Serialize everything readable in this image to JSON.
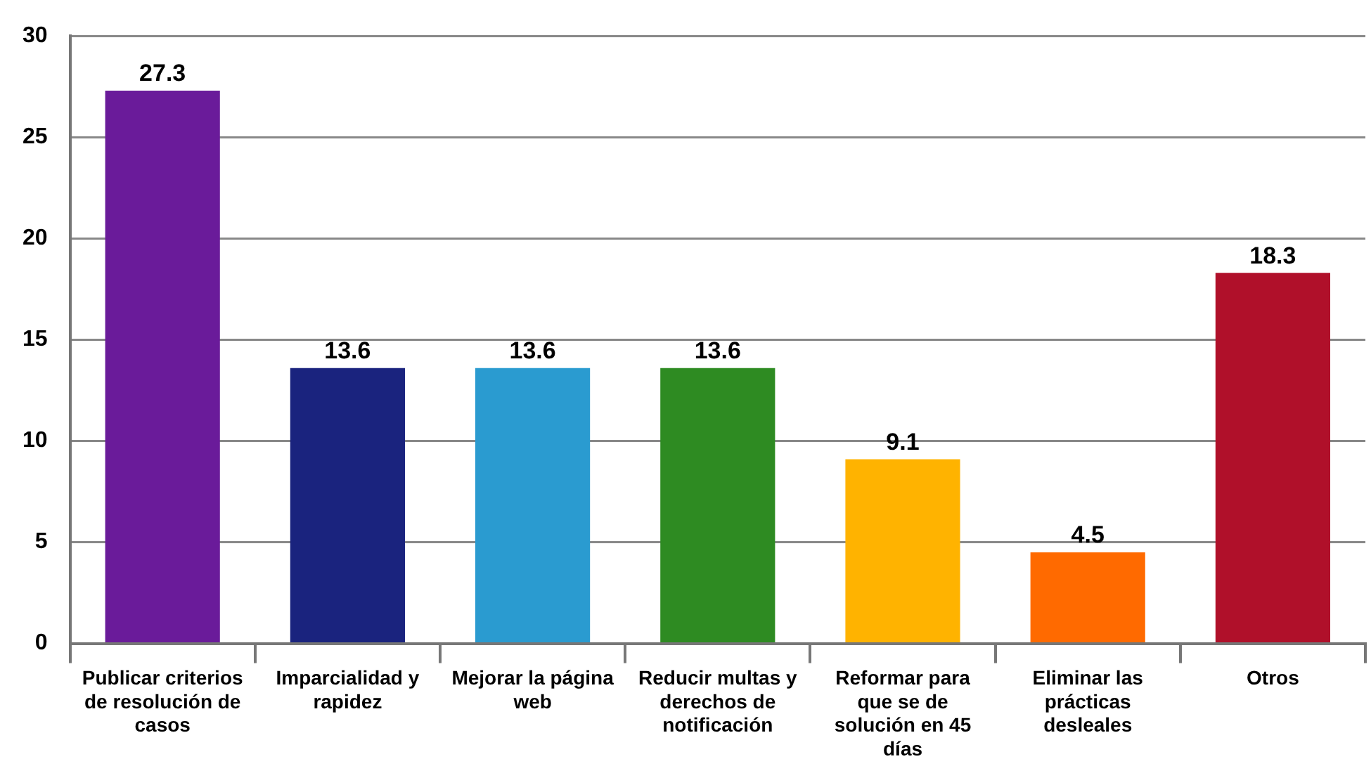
{
  "chart_data": {
    "type": "bar",
    "categories": [
      "Publicar criterios de resolución de casos",
      "Imparcialidad y rapidez",
      "Mejorar la página web",
      "Reducir multas y derechos de notificación",
      "Reformar para que se de solución en 45 días",
      "Eliminar las prácticas desleales",
      "Otros"
    ],
    "values": [
      27.3,
      13.6,
      13.6,
      13.6,
      9.1,
      4.5,
      18.3
    ],
    "colors": [
      "#6a1b9a",
      "#1a237e",
      "#2a9bd0",
      "#2e8b22",
      "#ffb300",
      "#ff6a00",
      "#b0102a"
    ],
    "ylim": [
      0,
      30
    ],
    "yticks": [
      0,
      5,
      10,
      15,
      20,
      25,
      30
    ],
    "grid": "y",
    "data_labels": true
  }
}
